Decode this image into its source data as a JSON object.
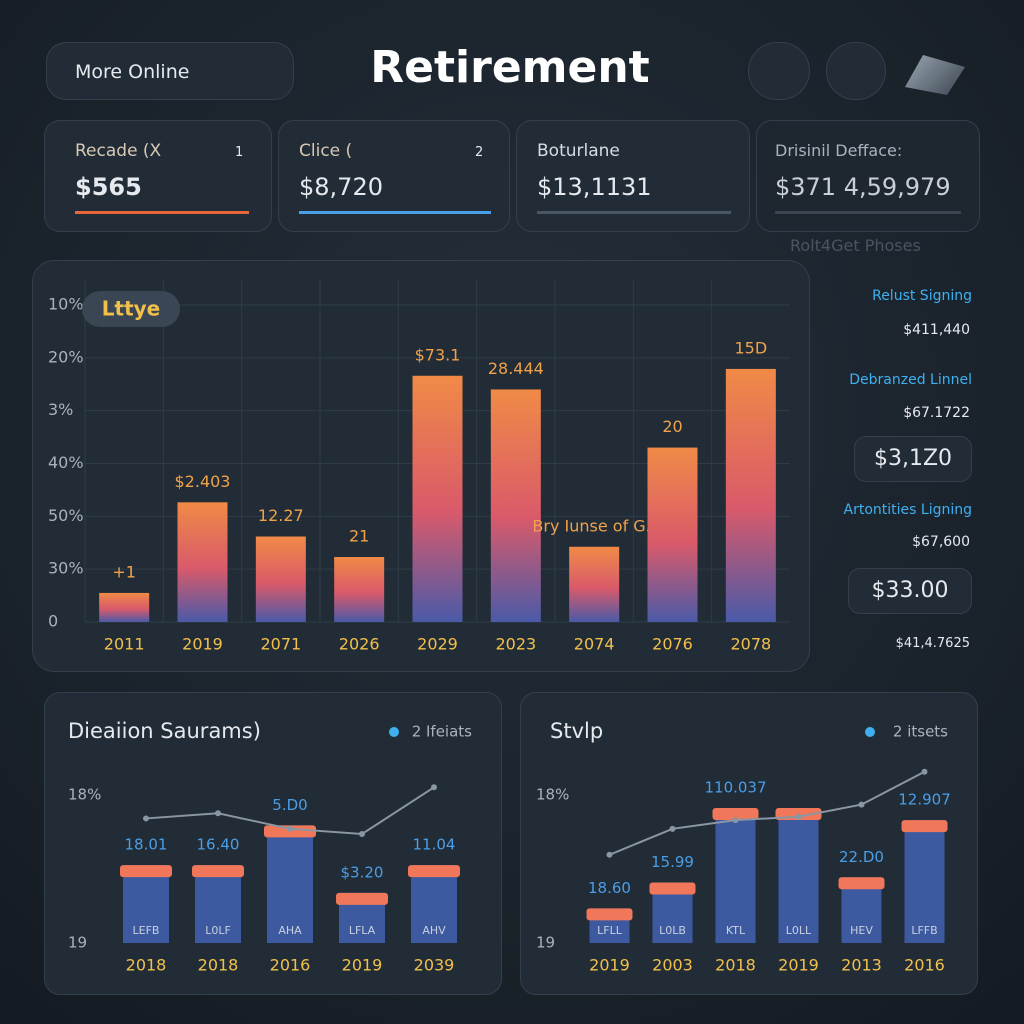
{
  "header": {
    "button": "More Online",
    "title": "Retirement"
  },
  "cards": [
    {
      "label": "Recade (X",
      "badge": "1",
      "value": "$565"
    },
    {
      "label": "Clice (",
      "badge": "2",
      "value": "$8,720"
    },
    {
      "label": "Boturlane",
      "value": "$13,1131"
    },
    {
      "label": "Drisinil Defface:",
      "value": "$371 4,59,979"
    }
  ],
  "side_panel": {
    "caption": "Rolt4Get Phoses",
    "items": [
      {
        "title": "Relust Signing",
        "value": "$411,440"
      },
      {
        "title": "Debranzed Linnel",
        "value": "$67.1722",
        "highlight": "$3,1Z0"
      },
      {
        "title": "Artontities Ligning",
        "value": "$67,600",
        "highlight": "$33.00"
      }
    ],
    "footer": "$41,4.7625"
  },
  "chart_data": [
    {
      "type": "bar",
      "legend": "Lttye",
      "categories": [
        "2011",
        "2019",
        "2071",
        "2026",
        "2029",
        "2023",
        "2074",
        "2076",
        "2078"
      ],
      "values": [
        8.5,
        35,
        25,
        19,
        72,
        68,
        22,
        51,
        74
      ],
      "bar_labels": [
        "+1",
        "$2.403",
        "12.27",
        "21",
        "$73.1",
        "28.444",
        "Bry Iunse of G5",
        "20",
        "15D"
      ],
      "ylim": [
        0,
        100
      ],
      "y_labels": [
        "10%",
        "20%",
        "3%",
        "40%",
        "50%",
        "30%",
        "0"
      ]
    },
    {
      "type": "bar",
      "title": "Dieaiion Saurams)",
      "legend": "2 Ifeiats",
      "categories": [
        "2018",
        "2018",
        "2016",
        "2019",
        "2039"
      ],
      "values": [
        45,
        45,
        68,
        29,
        45
      ],
      "bar_labels": [
        "18.01",
        "16.40",
        "5.D0",
        "$3.20",
        "11.04"
      ],
      "inner_labels": [
        "LEFB",
        "L0LF",
        "AHA",
        "LFLA",
        "AHV"
      ],
      "line": [
        72,
        75,
        66,
        63,
        90
      ],
      "ylim": [
        0,
        100
      ],
      "y_labels": [
        "18%",
        "19"
      ]
    },
    {
      "type": "bar",
      "title": "Stvlp",
      "legend": "2 itsets",
      "categories": [
        "2019",
        "2003",
        "2018",
        "2019",
        "2013",
        "2016"
      ],
      "values": [
        20,
        35,
        78,
        78,
        38,
        71
      ],
      "bar_labels": [
        "18.60",
        "15.99",
        "110.037",
        null,
        "22.D0",
        "12.907"
      ],
      "inner_labels": [
        "LFLL",
        "L0LB",
        "KTL",
        "L0LL",
        "HEV",
        "LFFB"
      ],
      "line": [
        51,
        66,
        71,
        73,
        80,
        99
      ],
      "ylim": [
        0,
        100
      ],
      "y_labels": [
        "18%",
        "19"
      ]
    }
  ]
}
